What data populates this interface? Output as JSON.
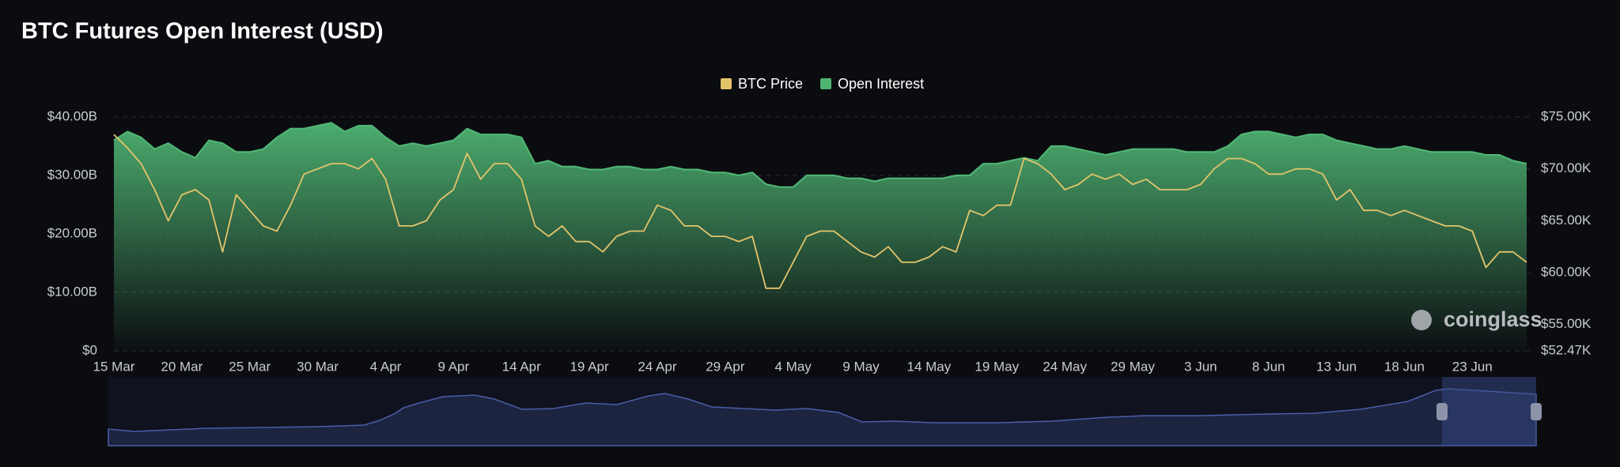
{
  "chart_data": {
    "type": "area",
    "title": "BTC Futures Open Interest (USD)",
    "watermark": "coinglass",
    "legend": "top",
    "grid": true,
    "categories": [
      "15 Mar",
      null,
      null,
      null,
      null,
      "20 Mar",
      null,
      null,
      null,
      null,
      "25 Mar",
      null,
      null,
      null,
      null,
      "30 Mar",
      null,
      null,
      null,
      null,
      "4 Apr",
      null,
      null,
      null,
      null,
      "9 Apr",
      null,
      null,
      null,
      null,
      "14 Apr",
      null,
      null,
      null,
      null,
      "19 Apr",
      null,
      null,
      null,
      null,
      "24 Apr",
      null,
      null,
      null,
      null,
      "29 Apr",
      null,
      null,
      null,
      null,
      "4 May",
      null,
      null,
      null,
      null,
      "9 May",
      null,
      null,
      null,
      null,
      "14 May",
      null,
      null,
      null,
      null,
      "19 May",
      null,
      null,
      null,
      null,
      "24 May",
      null,
      null,
      null,
      null,
      "29 May",
      null,
      null,
      null,
      null,
      "3 Jun",
      null,
      null,
      null,
      null,
      "8 Jun",
      null,
      null,
      null,
      null,
      "13 Jun",
      null,
      null,
      null,
      null,
      "18 Jun",
      null,
      null,
      null,
      null,
      "23 Jun",
      null,
      null,
      null,
      null
    ],
    "ylim": [
      0,
      40
    ],
    "yticks": [
      {
        "value": 0,
        "label": "$0"
      },
      {
        "value": 10,
        "label": "$10.00B"
      },
      {
        "value": 20,
        "label": "$20.00B"
      },
      {
        "value": 30,
        "label": "$30.00B"
      },
      {
        "value": 40,
        "label": "$40.00B"
      }
    ],
    "y2lim": [
      52.47,
      75
    ],
    "y2ticks": [
      {
        "value": 52.47,
        "label": "$52.47K"
      },
      {
        "value": 55,
        "label": "$55.00K"
      },
      {
        "value": 60,
        "label": "$60.00K"
      },
      {
        "value": 65,
        "label": "$65.00K"
      },
      {
        "value": 70,
        "label": "$70.00K"
      },
      {
        "value": 75,
        "label": "$75.00K"
      }
    ],
    "series": [
      {
        "name": "BTC Price",
        "color": "#e3c46b",
        "axis": "y2",
        "values": [
          73.3,
          72,
          70.5,
          68,
          65,
          67.5,
          68,
          67,
          62,
          67.5,
          66,
          64.5,
          64,
          66.5,
          69.5,
          70,
          70.5,
          70.5,
          70,
          71,
          69,
          64.5,
          64.5,
          65,
          67,
          68,
          71.5,
          69,
          70.5,
          70.5,
          69,
          64.5,
          63.5,
          64.5,
          63,
          63,
          62,
          63.5,
          64,
          64,
          66.5,
          66,
          64.5,
          64.5,
          63.5,
          63.5,
          63,
          63.5,
          58.5,
          58.5,
          61,
          63.5,
          64,
          64,
          63,
          62,
          61.5,
          62.5,
          61,
          61,
          61.5,
          62.5,
          62,
          66,
          65.5,
          66.5,
          66.5,
          71,
          70.5,
          69.5,
          68,
          68.5,
          69.5,
          69,
          69.5,
          68.5,
          69,
          68,
          68,
          68,
          68.5,
          70,
          71,
          71,
          70.5,
          69.5,
          69.5,
          70,
          70,
          69.5,
          67,
          68,
          66,
          66,
          65.5,
          66,
          65.5,
          65,
          64.5,
          64.5,
          64,
          60.5,
          62,
          62,
          61
        ]
      },
      {
        "name": "Open Interest",
        "color": "#4fb573",
        "values": [
          36,
          37.5,
          36.5,
          34.5,
          35.5,
          34,
          33,
          36,
          35.5,
          34,
          34,
          34.5,
          36.5,
          38,
          38,
          38.5,
          39,
          37.5,
          38.5,
          38.5,
          36.5,
          35,
          35.5,
          35,
          35.5,
          36,
          38,
          37,
          37,
          37,
          36.5,
          32,
          32.5,
          31.5,
          31.5,
          31,
          31,
          31.5,
          31.5,
          31,
          31,
          31.5,
          31,
          31,
          30.5,
          30.5,
          30,
          30.5,
          28.5,
          28,
          28,
          30,
          30,
          30,
          29.5,
          29.5,
          29,
          29.5,
          29.5,
          29.5,
          29.5,
          29.5,
          30,
          30,
          32,
          32,
          32.5,
          33,
          32.5,
          35,
          35,
          34.5,
          34,
          33.5,
          34,
          34.5,
          34.5,
          34.5,
          34.5,
          34,
          34,
          34,
          35,
          37,
          37.5,
          37.5,
          37,
          36.5,
          37,
          37,
          36,
          35.5,
          35,
          34.5,
          34.5,
          35,
          34.5,
          34,
          34,
          34,
          34,
          33.5,
          33.5,
          32.5,
          32
        ]
      }
    ]
  }
}
